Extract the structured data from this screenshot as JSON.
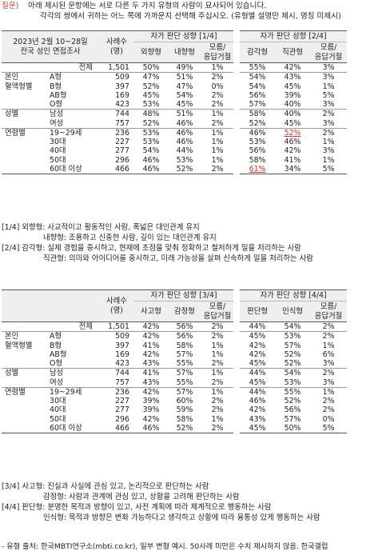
{
  "question": {
    "tag": "질문)",
    "line1": "아래 제시된 문항에는 서로 다른 두 가지 유형의 사람이 묘사되어 있습니다.",
    "line2": "각각의 쌍에서 귀하는 어느 쪽에 가까운지 선택해 주십시오. (유형별 설명만 제시, 명칭 미제시)"
  },
  "survey_label": {
    "line1": "2023년 2월 10~28일",
    "line2": "전국 성인 면접조사"
  },
  "sample_header": {
    "line1": "사례수",
    "line2": "(명)"
  },
  "table1": {
    "groupA": {
      "title": "자가 판단 성향 [1/4]",
      "cols": [
        "외향형",
        "내향형"
      ],
      "dk1": "모름/",
      "dk2": "응답거절"
    },
    "groupB": {
      "title": "자가 판단 성향 [2/4]",
      "cols": [
        "감각형",
        "직관형"
      ],
      "dk1": "모름/",
      "dk2": "응답거절"
    },
    "rows": [
      {
        "g": "",
        "s": "전체",
        "n": "1,501",
        "a": [
          "50%",
          "49%",
          "1%"
        ],
        "b": [
          "55%",
          "42%",
          "3%"
        ]
      },
      {
        "g": "본인",
        "s": "A형",
        "n": "509",
        "a": [
          "47%",
          "51%",
          "2%"
        ],
        "b": [
          "54%",
          "43%",
          "3%"
        ]
      },
      {
        "g": "혈액형별",
        "s": "B형",
        "n": "397",
        "a": [
          "52%",
          "47%",
          "0%"
        ],
        "b": [
          "54%",
          "45%",
          "1%"
        ]
      },
      {
        "g": "",
        "s": "AB형",
        "n": "169",
        "a": [
          "45%",
          "54%",
          "2%"
        ],
        "b": [
          "56%",
          "39%",
          "5%"
        ]
      },
      {
        "g": "",
        "s": "O형",
        "n": "423",
        "a": [
          "53%",
          "45%",
          "2%"
        ],
        "b": [
          "57%",
          "40%",
          "3%"
        ]
      },
      {
        "g": "성별",
        "s": "남성",
        "n": "744",
        "a": [
          "48%",
          "51%",
          "1%"
        ],
        "b": [
          "58%",
          "40%",
          "2%"
        ]
      },
      {
        "g": "",
        "s": "여성",
        "n": "757",
        "a": [
          "52%",
          "46%",
          "2%"
        ],
        "b": [
          "52%",
          "45%",
          "3%"
        ]
      },
      {
        "g": "연령별",
        "s": "19~29세",
        "n": "236",
        "a": [
          "53%",
          "46%",
          "1%"
        ],
        "b": [
          "46%",
          "52%",
          "2%"
        ]
      },
      {
        "g": "",
        "s": "30대",
        "n": "227",
        "s2": "",
        "a": [
          "53%",
          "46%",
          "1%"
        ],
        "b": [
          "53%",
          "46%",
          "1%"
        ]
      },
      {
        "g": "",
        "s": "40대",
        "n": "277",
        "a": [
          "54%",
          "44%",
          "1%"
        ],
        "b": [
          "56%",
          "42%",
          "3%"
        ]
      },
      {
        "g": "",
        "s": "50대",
        "n": "296",
        "a": [
          "46%",
          "53%",
          "1%"
        ],
        "b": [
          "58%",
          "41%",
          "1%"
        ]
      },
      {
        "g": "",
        "s": "60대 이상",
        "n": "466",
        "a": [
          "46%",
          "52%",
          "2%"
        ],
        "b": [
          "61%",
          "34%",
          "5%"
        ]
      }
    ]
  },
  "notes1": [
    "[1/4] 외향형: 사교적이고 활동적인 사람, 폭넓은 대인관계 유지",
    "내향형: 조용하고 신중한 사람, 깊이 있는 대인관계 유지",
    "[2/4] 감각형: 실제 경험을 중시하고, 현재에 초점을 맞춰 정확하고 철저하게 일을 처리하는 사람",
    "직관형: 의미와 아이디어를 중시하고, 미래 가능성을 살펴 신속하게 일을 처리하는 사람"
  ],
  "table2": {
    "groupA": {
      "title": "자가 판단 성향 [3/4]",
      "cols": [
        "사고형",
        "감정형"
      ],
      "dk1": "모름/",
      "dk2": "응답거절"
    },
    "groupB": {
      "title": "자가 판단 성향 [4/4]",
      "cols": [
        "판단형",
        "인식형"
      ],
      "dk1": "모름/",
      "dk2": "응답거절"
    },
    "rows": [
      {
        "g": "",
        "s": "전체",
        "n": "1,501",
        "a": [
          "42%",
          "56%",
          "2%"
        ],
        "b": [
          "44%",
          "54%",
          "2%"
        ]
      },
      {
        "g": "본인",
        "s": "A형",
        "n": "509",
        "a": [
          "42%",
          "56%",
          "2%"
        ],
        "b": [
          "45%",
          "53%",
          "2%"
        ]
      },
      {
        "g": "혈액형별",
        "s": "B형",
        "n": "397",
        "a": [
          "41%",
          "58%",
          "1%"
        ],
        "b": [
          "42%",
          "57%",
          "1%"
        ]
      },
      {
        "g": "",
        "s": "AB형",
        "n": "169",
        "a": [
          "42%",
          "57%",
          "1%"
        ],
        "b": [
          "42%",
          "52%",
          "6%"
        ]
      },
      {
        "g": "",
        "s": "O형",
        "n": "423",
        "a": [
          "43%",
          "55%",
          "2%"
        ],
        "b": [
          "45%",
          "52%",
          "3%"
        ]
      },
      {
        "g": "성별",
        "s": "남성",
        "n": "744",
        "a": [
          "41%",
          "57%",
          "1%"
        ],
        "b": [
          "44%",
          "54%",
          "2%"
        ]
      },
      {
        "g": "",
        "s": "여성",
        "n": "757",
        "a": [
          "43%",
          "55%",
          "2%"
        ],
        "b": [
          "45%",
          "53%",
          "3%"
        ]
      },
      {
        "g": "연령별",
        "s": "19~29세",
        "n": "236",
        "a": [
          "42%",
          "57%",
          "1%"
        ],
        "b": [
          "44%",
          "55%",
          "1%"
        ]
      },
      {
        "g": "",
        "s": "30대",
        "n": "227",
        "a": [
          "39%",
          "60%",
          "2%"
        ],
        "b": [
          "46%",
          "52%",
          "2%"
        ]
      },
      {
        "g": "",
        "s": "40대",
        "n": "277",
        "a": [
          "39%",
          "59%",
          "2%"
        ],
        "b": [
          "42%",
          "56%",
          "2%"
        ]
      },
      {
        "g": "",
        "s": "50대",
        "n": "296",
        "a": [
          "42%",
          "58%",
          "1%"
        ],
        "b": [
          "43%",
          "57%",
          "0%"
        ]
      },
      {
        "g": "",
        "s": "60대 이상",
        "n": "466",
        "a": [
          "46%",
          "52%",
          "2%"
        ],
        "b": [
          "45%",
          "50%",
          "5%"
        ]
      }
    ]
  },
  "notes2": [
    "[3/4] 사고형: 진실과 사실에 관심 있고, 논리적으로 판단하는 사람",
    "감정형: 사람과 관계에 관심 있고, 상황을 고려해 판단하는 사람",
    "[4/4] 판단형: 분명한 목적과 방향이 있고, 사전 계획에 따라 체계적으로 행동하는 사람",
    "인식형: 목적과 방향은 변화 가능하다고 생각하고 상황에 따라 융통성 있게 행동하는 사람"
  ],
  "source": "- 유형 출처: 한국MBTI연구소(mbti.co.kr), 일부 변형 예시. 50사례 미만은 수치 제시하지 않음. 한국갤럽",
  "colors": {
    "header_bg": "#efefef",
    "highlight": "#c0392b"
  }
}
